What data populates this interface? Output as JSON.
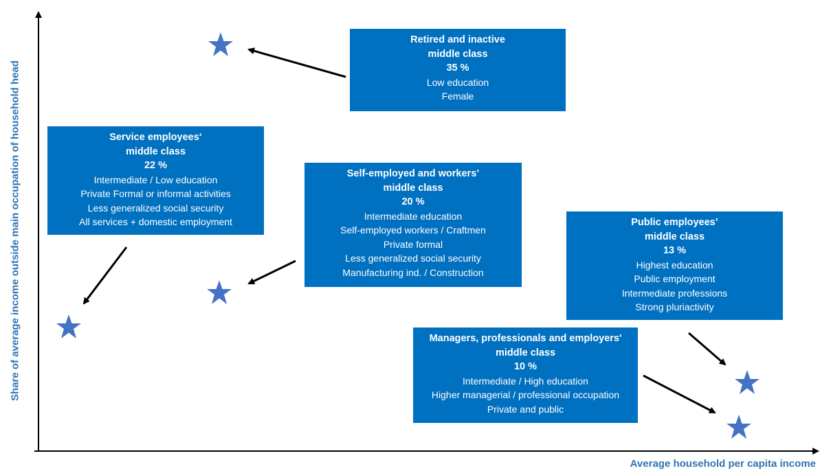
{
  "axes": {
    "y_label": "Share of average income outside main occupation of household head",
    "x_label": "Average household per capita income"
  },
  "boxes": [
    {
      "title": [
        "Retired and inactive",
        "middle class"
      ],
      "share": "35 %",
      "attributes": [
        "Low education",
        "Female"
      ]
    },
    {
      "title": [
        "Service employees‘",
        "middle class"
      ],
      "share": "22 %",
      "attributes": [
        "Intermediate / Low education",
        "Private Formal or informal activities",
        "Less generalized social security",
        "All  services + domestic employment"
      ]
    },
    {
      "title": [
        "Self-employed and workers’",
        "middle class"
      ],
      "share": "20 %",
      "attributes": [
        "Intermediate education",
        "Self-employed  workers / Craftmen",
        "Private formal",
        "Less generalized social security",
        "Manufacturing ind. / Construction"
      ]
    },
    {
      "title": [
        "Public employees’",
        "middle class"
      ],
      "share": "13 %",
      "attributes": [
        "Highest education",
        "Public employment",
        "Intermediate professions",
        "Strong pluriactivity"
      ]
    },
    {
      "title": [
        "Managers, professionals and employers'",
        "middle class"
      ],
      "share": "10 %",
      "attributes": [
        "Intermediate / High education",
        "Higher managerial / professional occupation",
        "Private and public"
      ]
    }
  ]
}
